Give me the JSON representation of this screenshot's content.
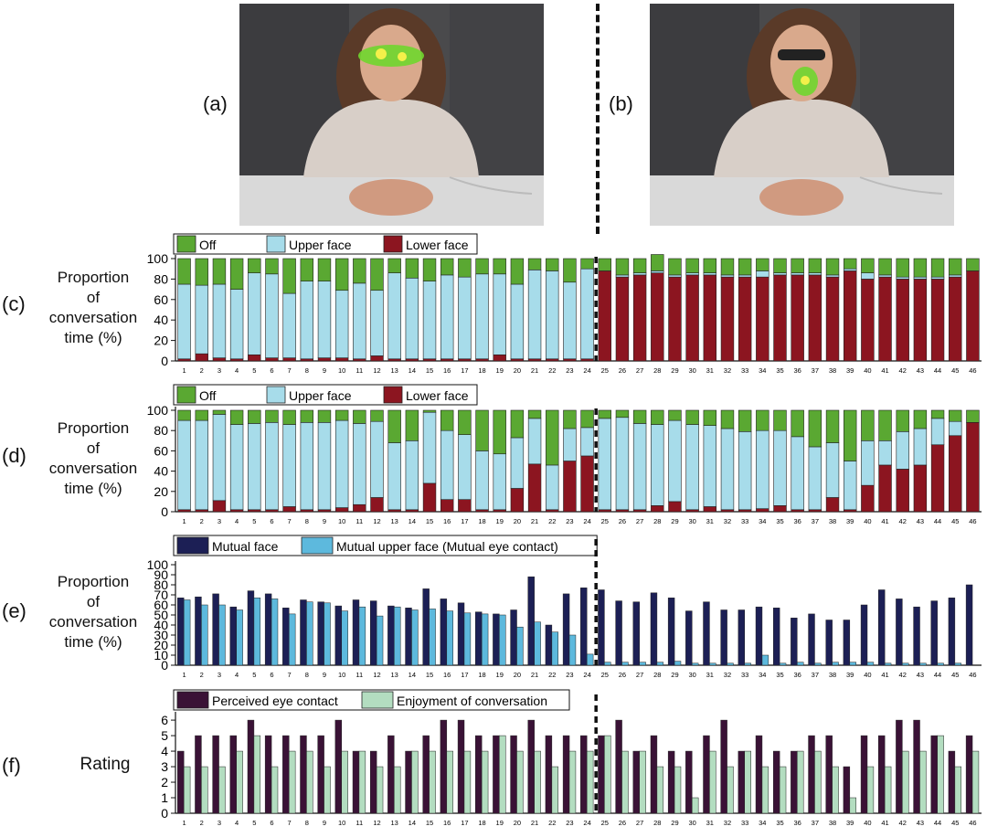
{
  "labels": {
    "a": "(a)",
    "b": "(b)",
    "c": "(c)",
    "d": "(d)",
    "e": "(e)",
    "f": "(f)"
  },
  "ylabels": {
    "c": [
      "Proportion",
      "of",
      "conversation",
      "time (%)"
    ],
    "d": [
      "Proportion",
      "of",
      "conversation",
      "time (%)"
    ],
    "e": [
      "Proportion",
      "of",
      "conversation",
      "time (%)"
    ],
    "f": [
      "Rating"
    ]
  },
  "colors": {
    "off": "#5aa832",
    "upper": "#a7dcea",
    "lower": "#8c1520",
    "mutual": "#1c1f55",
    "mutual_upper": "#5db9dd",
    "perceived": "#3a1236",
    "enjoyment": "#b3ddc0"
  },
  "chart_data": [
    {
      "id": "c",
      "type": "bar",
      "stacked": true,
      "categories": [
        "1",
        "2",
        "3",
        "4",
        "5",
        "6",
        "7",
        "8",
        "9",
        "10",
        "11",
        "12",
        "13",
        "14",
        "15",
        "16",
        "17",
        "18",
        "19",
        "20",
        "21",
        "22",
        "23",
        "24",
        "25",
        "26",
        "27",
        "28",
        "29",
        "30",
        "31",
        "32",
        "33",
        "34",
        "35",
        "36",
        "37",
        "38",
        "39",
        "40",
        "41",
        "42",
        "43",
        "44",
        "45",
        "46"
      ],
      "ylim": [
        0,
        100
      ],
      "yticks": [
        0,
        20,
        40,
        60,
        80,
        100
      ],
      "grid": false,
      "legend_position": "top-left",
      "series": [
        {
          "name": "Lower face",
          "values": [
            2,
            7,
            3,
            2,
            6,
            3,
            3,
            2,
            3,
            3,
            2,
            5,
            2,
            2,
            2,
            2,
            2,
            2,
            6,
            2,
            2,
            2,
            2,
            2,
            88,
            82,
            84,
            86,
            82,
            84,
            84,
            82,
            82,
            82,
            84,
            84,
            84,
            82,
            88,
            80,
            82,
            80,
            80,
            80,
            82,
            88
          ]
        },
        {
          "name": "Upper face",
          "values": [
            73,
            67,
            72,
            68,
            80,
            82,
            63,
            76,
            75,
            66,
            74,
            64,
            84,
            79,
            76,
            82,
            80,
            83,
            79,
            73,
            87,
            86,
            75,
            88,
            0,
            2,
            2,
            2,
            2,
            2,
            2,
            2,
            2,
            6,
            2,
            2,
            2,
            2,
            2,
            6,
            2,
            2,
            2,
            2,
            2,
            0
          ]
        },
        {
          "name": "Off",
          "values": [
            25,
            26,
            25,
            30,
            14,
            15,
            34,
            22,
            22,
            31,
            24,
            31,
            14,
            19,
            22,
            16,
            18,
            15,
            15,
            25,
            11,
            12,
            23,
            10,
            12,
            16,
            14,
            16,
            16,
            14,
            14,
            16,
            16,
            12,
            14,
            14,
            14,
            16,
            10,
            14,
            16,
            18,
            18,
            18,
            16,
            12
          ]
        }
      ]
    },
    {
      "id": "d",
      "type": "bar",
      "stacked": true,
      "categories": [
        "1",
        "2",
        "3",
        "4",
        "5",
        "6",
        "7",
        "8",
        "9",
        "10",
        "11",
        "12",
        "13",
        "14",
        "15",
        "16",
        "17",
        "18",
        "19",
        "20",
        "21",
        "22",
        "23",
        "24",
        "25",
        "26",
        "27",
        "28",
        "29",
        "30",
        "31",
        "32",
        "33",
        "34",
        "35",
        "36",
        "37",
        "38",
        "39",
        "40",
        "41",
        "42",
        "43",
        "44",
        "45",
        "46"
      ],
      "ylim": [
        0,
        100
      ],
      "yticks": [
        0,
        20,
        40,
        60,
        80,
        100
      ],
      "grid": false,
      "legend_position": "top-left",
      "series": [
        {
          "name": "Lower face",
          "values": [
            2,
            2,
            11,
            2,
            2,
            2,
            5,
            2,
            2,
            4,
            7,
            14,
            2,
            2,
            28,
            12,
            12,
            2,
            2,
            23,
            47,
            2,
            50,
            55,
            2,
            2,
            2,
            6,
            10,
            2,
            5,
            2,
            2,
            3,
            6,
            2,
            2,
            14,
            2,
            26,
            46,
            42,
            46,
            66,
            75,
            88
          ]
        },
        {
          "name": "Upper face",
          "values": [
            88,
            88,
            85,
            84,
            85,
            86,
            81,
            86,
            86,
            86,
            80,
            75,
            66,
            68,
            70,
            68,
            64,
            58,
            55,
            50,
            45,
            44,
            32,
            28,
            90,
            91,
            85,
            80,
            80,
            84,
            80,
            80,
            77,
            77,
            74,
            72,
            62,
            54,
            48,
            44,
            24,
            37,
            36,
            26,
            14,
            0
          ]
        },
        {
          "name": "Off",
          "values": [
            10,
            10,
            4,
            14,
            13,
            12,
            14,
            12,
            12,
            10,
            13,
            11,
            32,
            30,
            2,
            20,
            24,
            40,
            43,
            27,
            8,
            54,
            18,
            17,
            8,
            7,
            13,
            14,
            10,
            14,
            15,
            18,
            21,
            20,
            20,
            26,
            36,
            32,
            50,
            30,
            30,
            21,
            18,
            8,
            11,
            12
          ]
        }
      ]
    },
    {
      "id": "e",
      "type": "bar",
      "stacked": false,
      "categories": [
        "1",
        "2",
        "3",
        "4",
        "5",
        "6",
        "7",
        "8",
        "9",
        "10",
        "11",
        "12",
        "13",
        "14",
        "15",
        "16",
        "17",
        "18",
        "19",
        "20",
        "21",
        "22",
        "23",
        "24",
        "25",
        "26",
        "27",
        "28",
        "29",
        "30",
        "31",
        "32",
        "33",
        "34",
        "35",
        "36",
        "37",
        "38",
        "39",
        "40",
        "41",
        "42",
        "43",
        "44",
        "45",
        "46"
      ],
      "ylim": [
        0,
        100
      ],
      "yticks": [
        0,
        10,
        20,
        30,
        40,
        50,
        60,
        70,
        80,
        90,
        100
      ],
      "grid": false,
      "legend_position": "top-left",
      "series": [
        {
          "name": "Mutual face",
          "values": [
            67,
            68,
            71,
            58,
            74,
            71,
            57,
            65,
            63,
            59,
            65,
            64,
            59,
            57,
            76,
            66,
            62,
            53,
            51,
            55,
            88,
            40,
            71,
            77,
            75,
            64,
            63,
            72,
            67,
            54,
            63,
            55,
            55,
            58,
            57,
            47,
            51,
            45,
            45,
            60,
            75,
            66,
            58,
            64,
            67,
            80
          ]
        },
        {
          "name": "Mutual upper face (Mutual eye contact)",
          "values": [
            65,
            60,
            60,
            55,
            67,
            66,
            51,
            63,
            62,
            54,
            58,
            49,
            58,
            55,
            56,
            54,
            52,
            51,
            50,
            38,
            43,
            33,
            30,
            11,
            3,
            3,
            3,
            3,
            4,
            2,
            2,
            2,
            2,
            10,
            2,
            3,
            2,
            3,
            3,
            3,
            2,
            2,
            2,
            2,
            2,
            0
          ]
        }
      ]
    },
    {
      "id": "f",
      "type": "bar",
      "stacked": false,
      "categories": [
        "1",
        "2",
        "3",
        "4",
        "5",
        "6",
        "7",
        "8",
        "9",
        "10",
        "11",
        "12",
        "13",
        "14",
        "15",
        "16",
        "17",
        "18",
        "19",
        "20",
        "21",
        "22",
        "23",
        "24",
        "25",
        "26",
        "27",
        "28",
        "29",
        "30",
        "31",
        "32",
        "33",
        "34",
        "35",
        "36",
        "37",
        "38",
        "39",
        "40",
        "41",
        "42",
        "43",
        "44",
        "45",
        "46"
      ],
      "ylim": [
        0,
        6.3
      ],
      "yticks": [
        0,
        1,
        2,
        3,
        4,
        5,
        6
      ],
      "grid": false,
      "legend_position": "top-left",
      "series": [
        {
          "name": "Perceived eye contact",
          "values": [
            4,
            5,
            5,
            5,
            6,
            5,
            5,
            5,
            5,
            6,
            4,
            4,
            5,
            4,
            5,
            6,
            6,
            5,
            5,
            5,
            6,
            5,
            5,
            5,
            5,
            6,
            4,
            5,
            4,
            4,
            5,
            6,
            4,
            5,
            4,
            4,
            5,
            5,
            3,
            5,
            5,
            6,
            6,
            5,
            4,
            5
          ]
        },
        {
          "name": "Enjoyment of conversation",
          "values": [
            3,
            3,
            3,
            4,
            5,
            3,
            4,
            4,
            3,
            4,
            4,
            3,
            3,
            4,
            4,
            4,
            4,
            4,
            5,
            4,
            4,
            3,
            4,
            4,
            5,
            4,
            4,
            3,
            3,
            1,
            4,
            3,
            4,
            3,
            3,
            4,
            4,
            3,
            1,
            3,
            3,
            4,
            4,
            5,
            3,
            4
          ]
        }
      ]
    }
  ]
}
